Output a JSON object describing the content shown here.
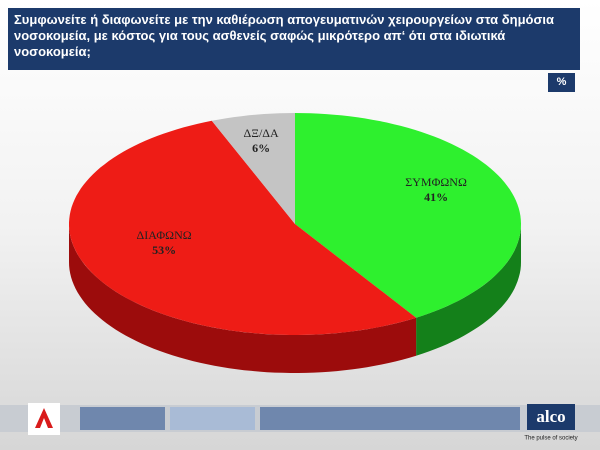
{
  "chart_data": {
    "type": "pie3d",
    "title": "Συμφωνείτε ή διαφωνείτε με την καθιέρωση απογευματινών χειρουργείων στα δημόσια νοσοκομεία,  με κόστος για τους ασθενείς σαφώς μικρότερο απ‘ ότι στα ιδιωτικά νοσοκομεία;",
    "unit_badge": "%",
    "categories": [
      "ΣΥΜΦΩΝΩ",
      "ΔΙΑΦΩΝΩ",
      "ΔΞ/ΔΑ"
    ],
    "values": [
      41,
      53,
      6
    ],
    "value_labels": [
      "41%",
      "53%",
      "6%"
    ],
    "colors": [
      "#2ef02e",
      "#ee1c16",
      "#c4c4c4"
    ],
    "side_colors": [
      "#14801a",
      "#9c0c0c",
      "#8a8a8a"
    ]
  },
  "footer": {
    "brand": "alco",
    "tagline": "The pulse of society"
  }
}
